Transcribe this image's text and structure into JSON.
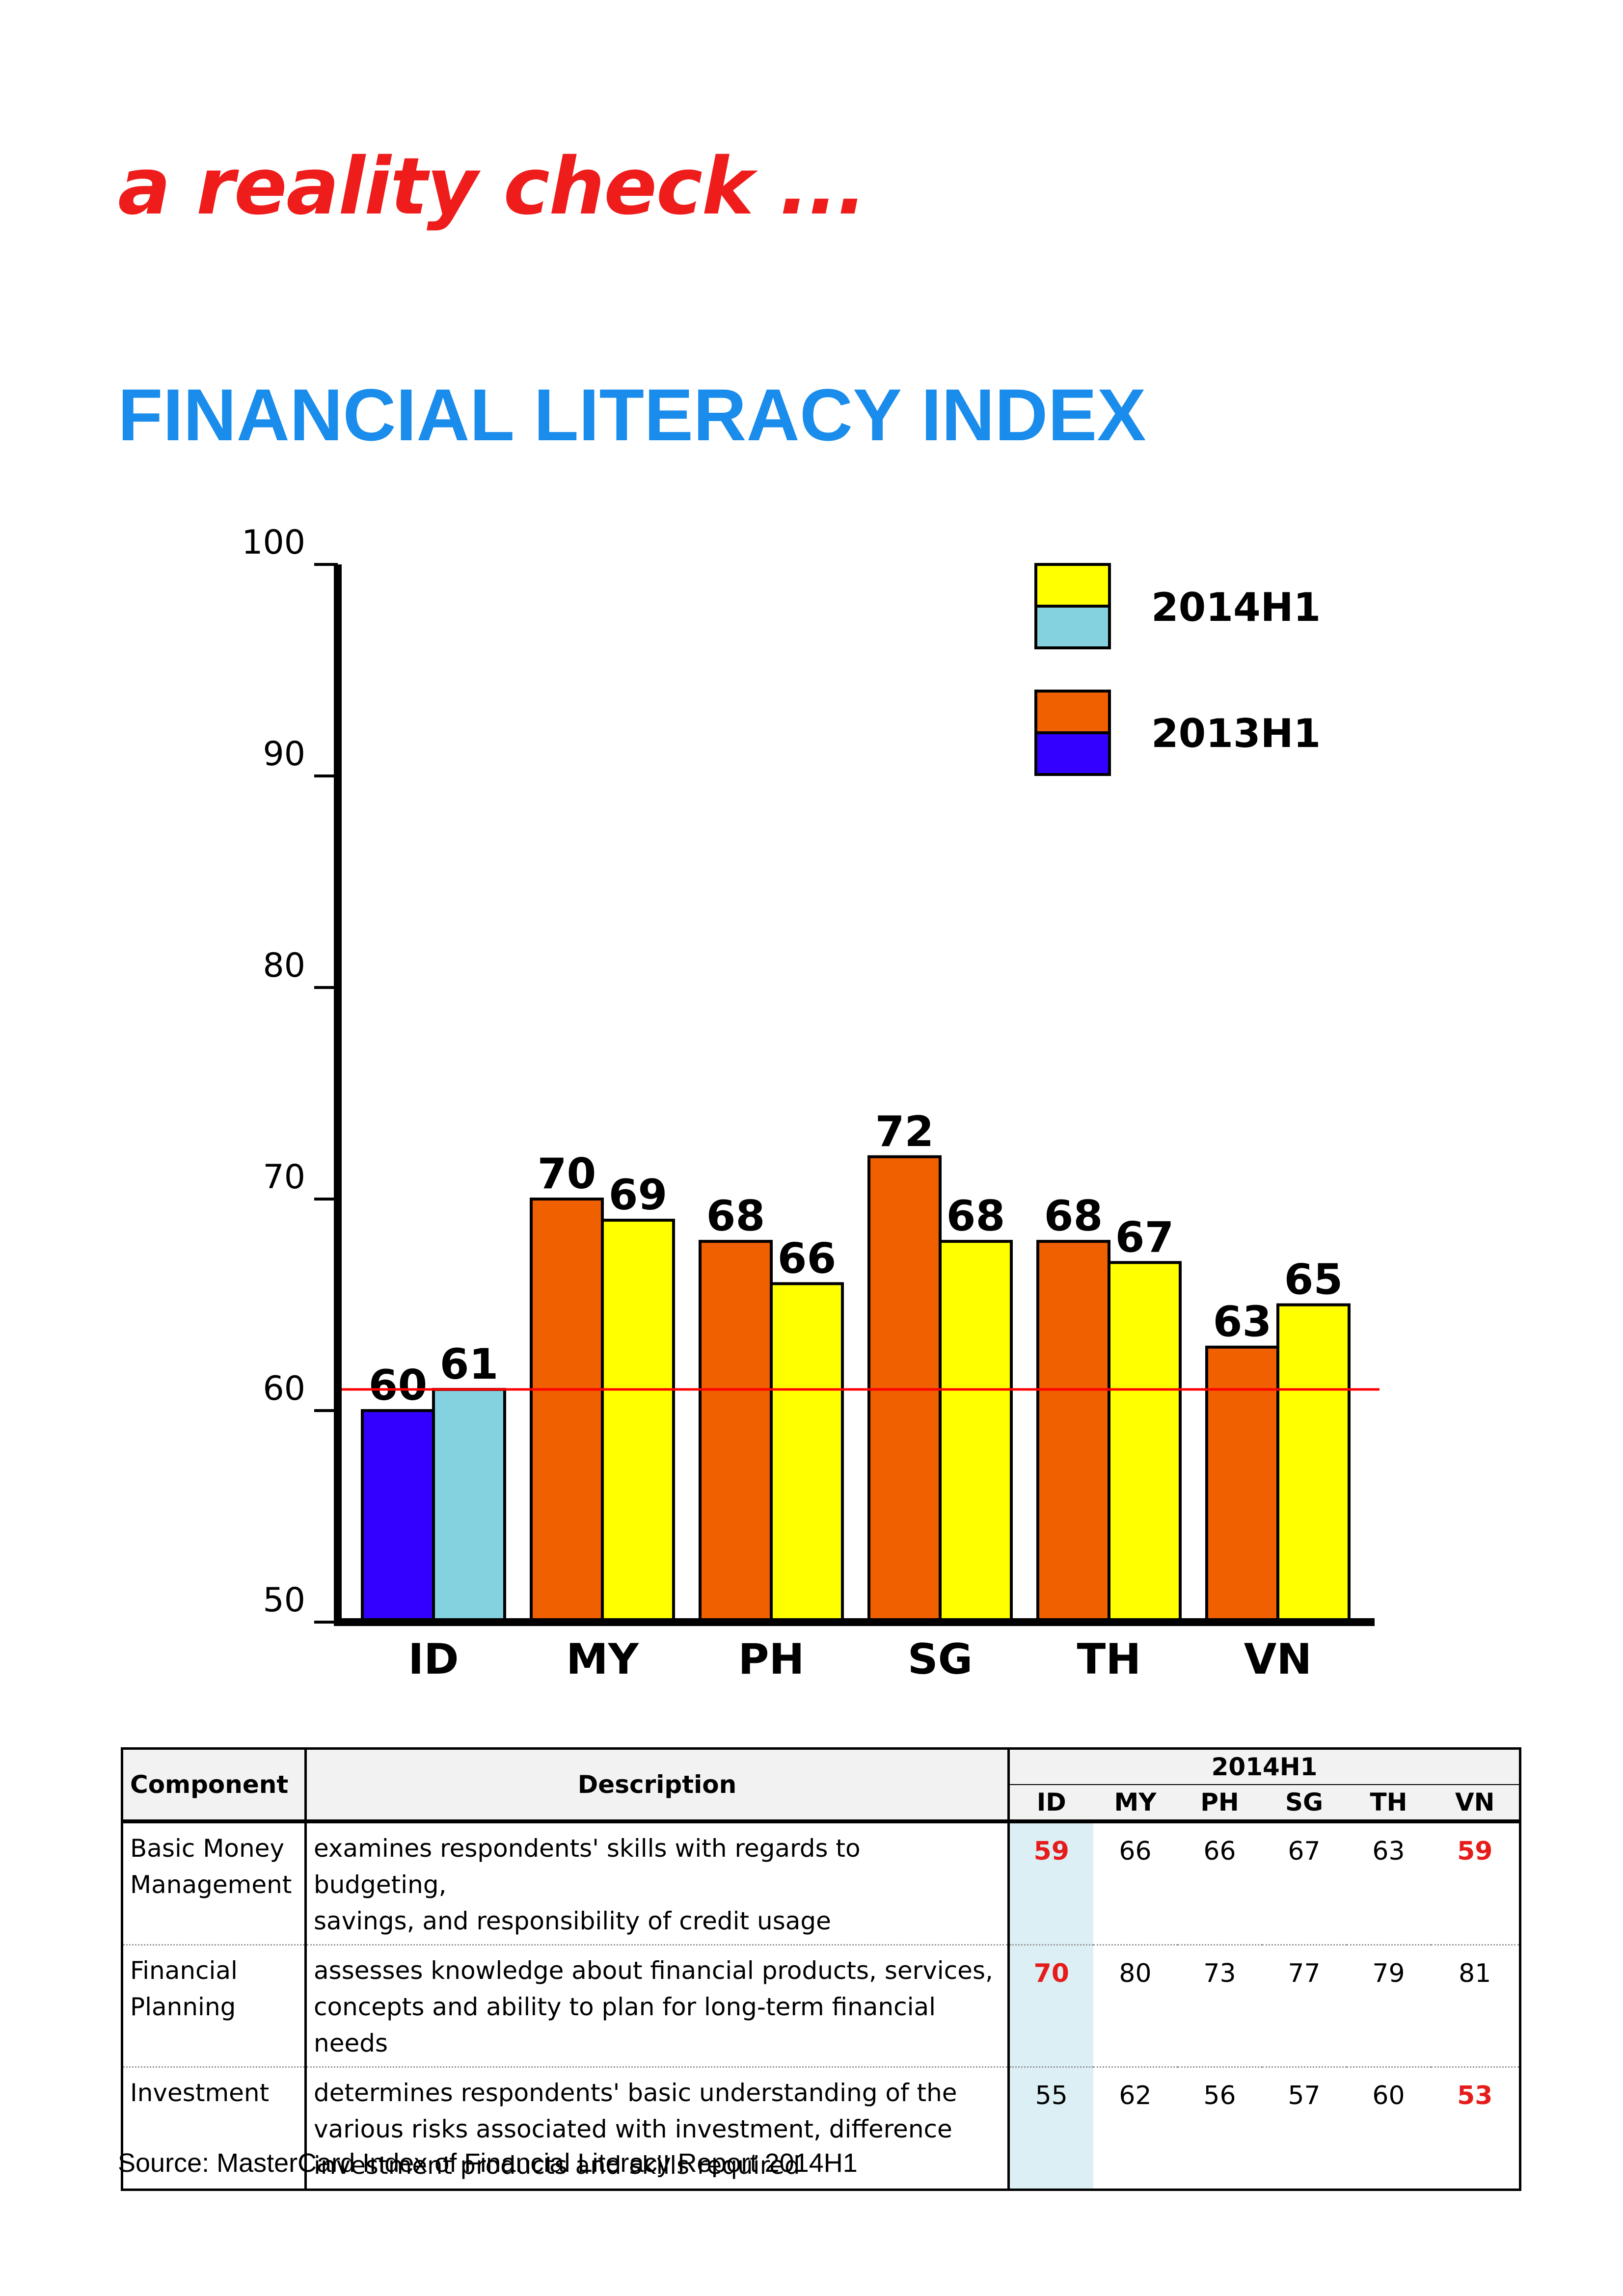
{
  "heading": "a reality check ...",
  "chart_data": {
    "type": "bar",
    "title": "FINANCIAL LITERACY INDEX",
    "categories": [
      "ID",
      "MY",
      "PH",
      "SG",
      "TH",
      "VN"
    ],
    "series": [
      {
        "name": "2013H1",
        "values": [
          60,
          70,
          68,
          72,
          68,
          63
        ]
      },
      {
        "name": "2014H1",
        "values": [
          61,
          69,
          66,
          68,
          67,
          65
        ]
      }
    ],
    "ylim": [
      50,
      100
    ],
    "yticks": [
      50,
      60,
      70,
      80,
      90,
      100
    ],
    "reference_line": 61,
    "legend": [
      "2014H1",
      "2013H1"
    ],
    "legend_position": "top-right",
    "grid": false,
    "colors": {
      "id_2013": "#3300ff",
      "id_2014": "#84d2e0",
      "other_2013": "#f06000",
      "other_2014": "#ffff00",
      "reference": "#ff0000"
    }
  },
  "table": {
    "headers": {
      "component": "Component",
      "description": "Description",
      "group": "2014H1",
      "countries": [
        "ID",
        "MY",
        "PH",
        "SG",
        "TH",
        "VN"
      ]
    },
    "rows": [
      {
        "component": [
          "Basic Money",
          "Management"
        ],
        "description": [
          "examines respondents' skills with regards to budgeting,",
          "savings, and responsibility of credit usage"
        ],
        "values": [
          "59",
          "66",
          "66",
          "67",
          "63",
          "59"
        ],
        "highlight": [
          true,
          false,
          false,
          false,
          false,
          true
        ]
      },
      {
        "component": [
          "Financial",
          "Planning"
        ],
        "description": [
          "assesses knowledge about financial products, services,",
          "concepts and ability to plan for long-term financial needs"
        ],
        "values": [
          "70",
          "80",
          "73",
          "77",
          "79",
          "81"
        ],
        "highlight": [
          true,
          false,
          false,
          false,
          false,
          false
        ]
      },
      {
        "component": [
          "Investment"
        ],
        "description": [
          "determines respondents' basic understanding of the",
          "various risks associated with investment, difference",
          "investment products and skills required"
        ],
        "values": [
          "55",
          "62",
          "56",
          "57",
          "60",
          "53"
        ],
        "highlight": [
          false,
          false,
          false,
          false,
          false,
          true
        ]
      }
    ]
  },
  "source": "Source: MasterCard Index of Financial Literacy Report 2014H1"
}
